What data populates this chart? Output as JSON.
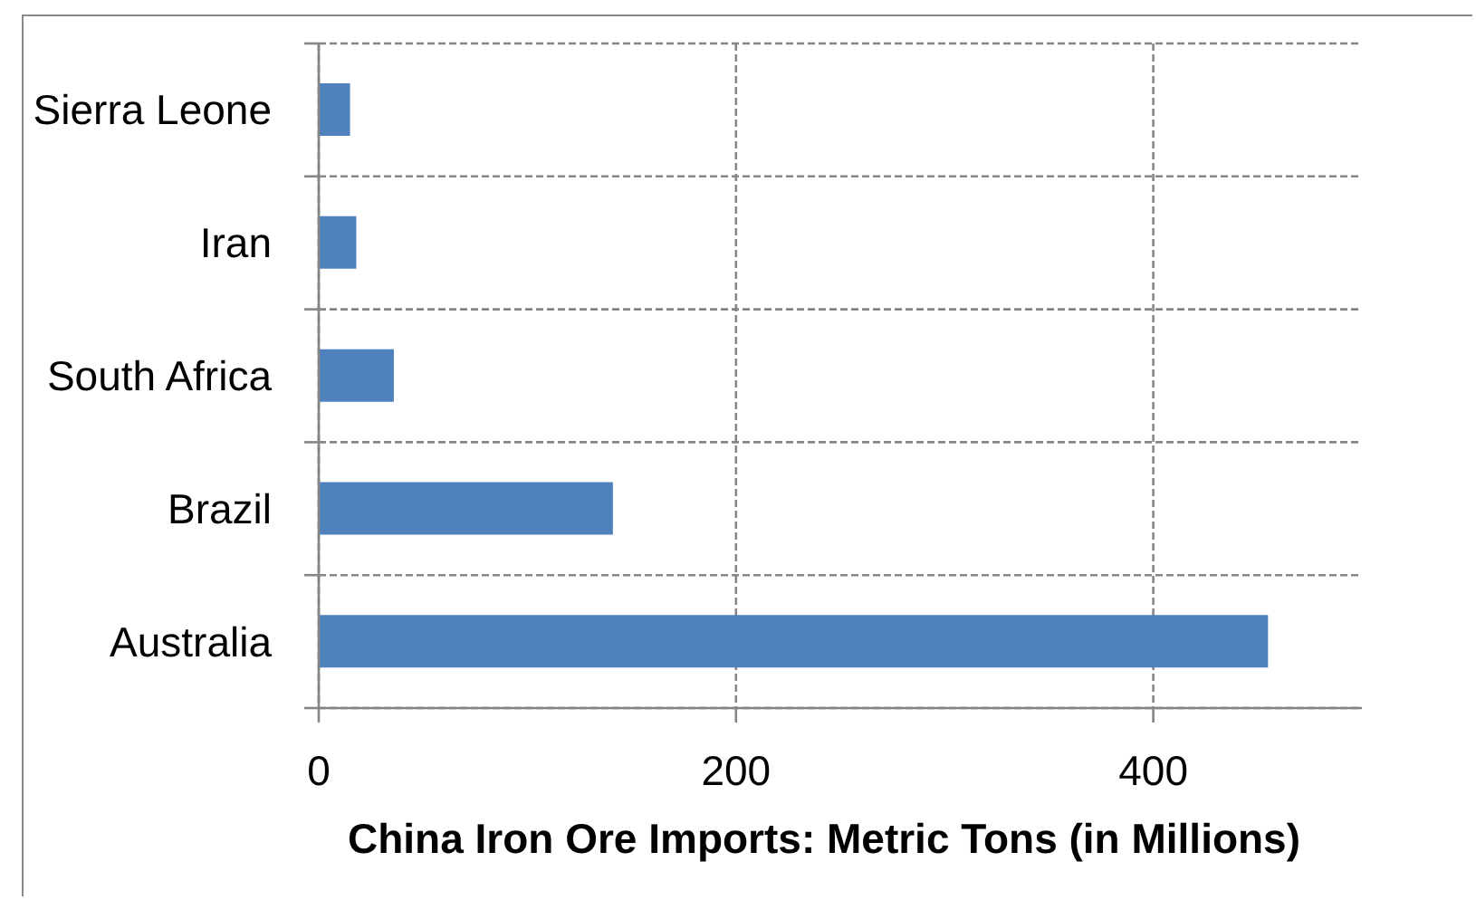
{
  "chart_data": {
    "type": "bar",
    "orientation": "horizontal",
    "xlabel": "China Iron Ore Imports: Metric Tons (in Millions)",
    "categories": [
      "Sierra Leone",
      "Iran",
      "South Africa",
      "Brazil",
      "Australia"
    ],
    "values": [
      15,
      18,
      36,
      141,
      455
    ],
    "color": "#4f81bd",
    "xlim": [
      0,
      500
    ],
    "xticks": [
      0,
      200,
      400
    ],
    "grid": true
  }
}
